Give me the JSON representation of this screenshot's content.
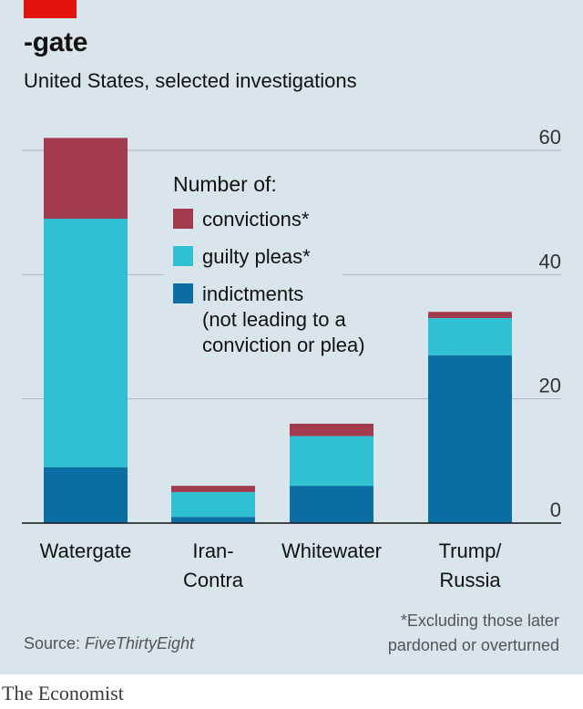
{
  "title": "-gate",
  "subtitle": "United States, selected investigations",
  "source_label": "Source: ",
  "source_name": "FiveThirtyEight",
  "footnote_lines": [
    "*Excluding those later",
    "pardoned or overturned"
  ],
  "brand": "The Economist",
  "colors": {
    "background": "#d8e5ed",
    "convictions": "#a23b4e",
    "guilty_pleas": "#2fc1d3",
    "indictments": "#0b6fa3",
    "accent_tag": "#e3120b"
  },
  "chart_data": {
    "type": "bar",
    "stacked": true,
    "title": "-gate",
    "subtitle": "United States, selected investigations",
    "categories": [
      [
        "Watergate"
      ],
      [
        "Iran-",
        "Contra"
      ],
      [
        "Whitewater"
      ],
      [
        "Trump/",
        "Russia"
      ]
    ],
    "series": [
      {
        "key": "indictments",
        "name": "indictments",
        "color": "#0b6fa3",
        "values": [
          9,
          1,
          6,
          27
        ]
      },
      {
        "key": "guilty_pleas",
        "name": "guilty pleas*",
        "color": "#2fc1d3",
        "values": [
          40,
          4,
          8,
          6
        ]
      },
      {
        "key": "convictions",
        "name": "convictions*",
        "color": "#a23b4e",
        "values": [
          13,
          1,
          2,
          1
        ]
      }
    ],
    "ylim": [
      0,
      60
    ],
    "yticks": [
      0,
      20,
      40,
      60
    ],
    "axis_side": "right",
    "grid": true,
    "legend": {
      "heading": "Number of:",
      "items": [
        {
          "key": "convictions",
          "lines": [
            "convictions*"
          ]
        },
        {
          "key": "guilty_pleas",
          "lines": [
            "guilty pleas*"
          ]
        },
        {
          "key": "indictments",
          "lines": [
            "indictments",
            "(not leading to a",
            "conviction or plea)"
          ]
        }
      ],
      "placement": "top-center"
    }
  }
}
